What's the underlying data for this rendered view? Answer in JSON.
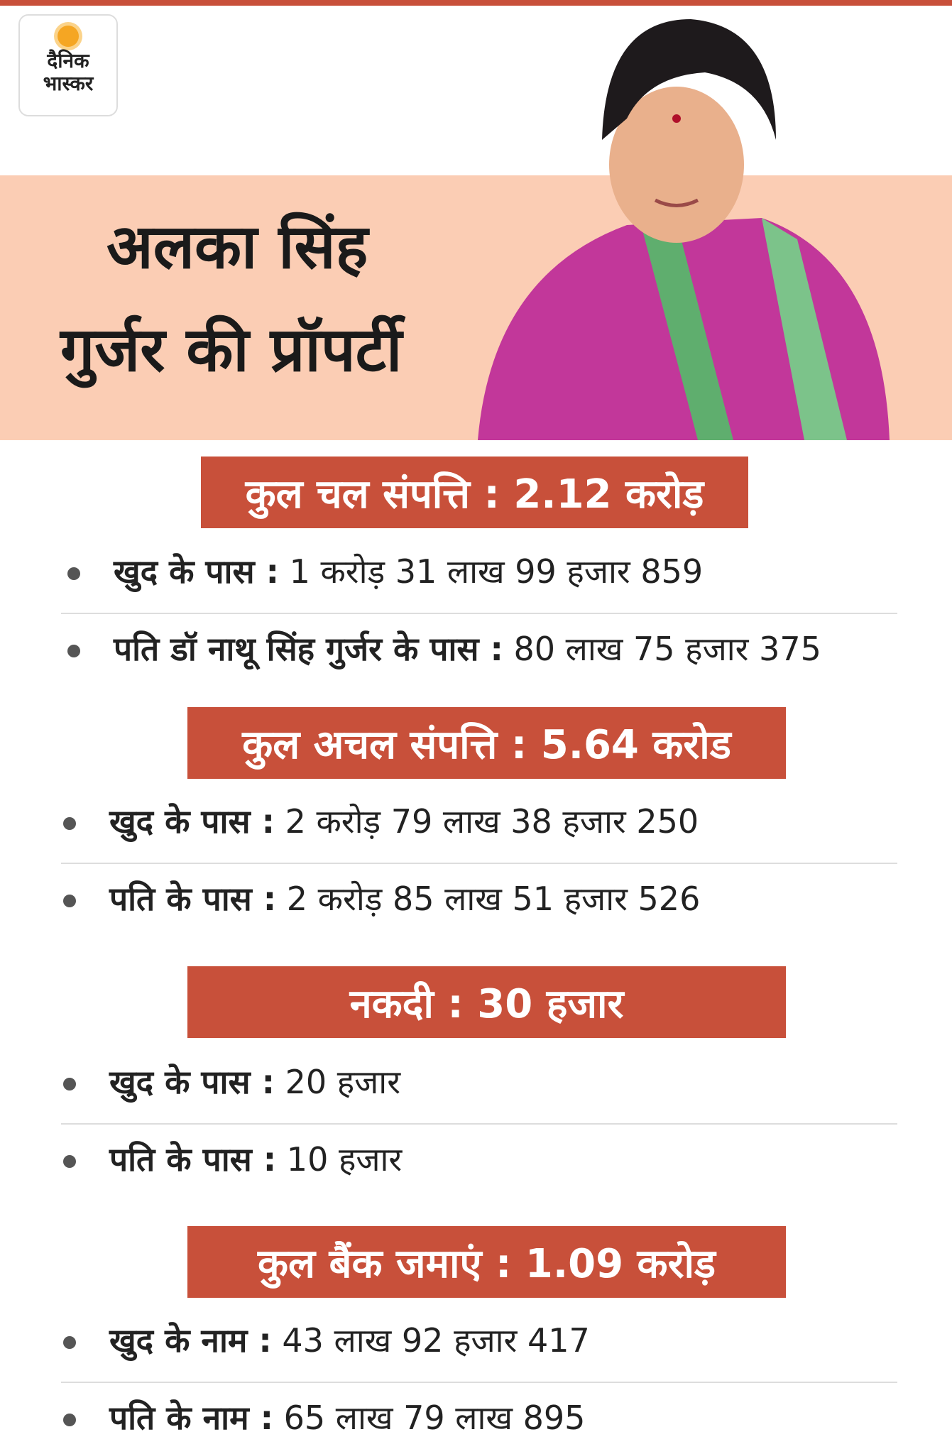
{
  "logo": {
    "line1": "दैनिक",
    "line2": "भास्कर"
  },
  "title": {
    "line1": "अलका सिंह",
    "line2": "गुर्जर की प्रॉपर्टी"
  },
  "sections": [
    {
      "heading": "कुल चल संपत्ति : 2.12 करोड़",
      "items": [
        {
          "label": "खुद के पास :",
          "value": "1 करोड़ 31 लाख 99 हजार 859"
        },
        {
          "label": "पति डॉ नाथू सिंह गुर्जर के पास :",
          "value": "80 लाख 75 हजार 375"
        }
      ]
    },
    {
      "heading": "कुल अचल संपत्ति : 5.64 करोड",
      "items": [
        {
          "label": "खुद के पास :",
          "value": "2 करोड़ 79 लाख 38 हजार 250"
        },
        {
          "label": "पति के पास :",
          "value": "2 करोड़ 85 लाख 51 हजार 526"
        }
      ]
    },
    {
      "heading": "नकदी : 30 हजार",
      "items": [
        {
          "label": "खुद के पास :",
          "value": "20 हजार"
        },
        {
          "label": "पति के पास :",
          "value": "10 हजार"
        }
      ]
    },
    {
      "heading": "कुल बैंक जमाएं : 1.09 करोड़",
      "items": [
        {
          "label": "खुद के नाम :",
          "value": "43 लाख 92 हजार 417"
        },
        {
          "label": "पति के नाम :",
          "value": "65 लाख 79 लाख 895"
        }
      ]
    }
  ]
}
